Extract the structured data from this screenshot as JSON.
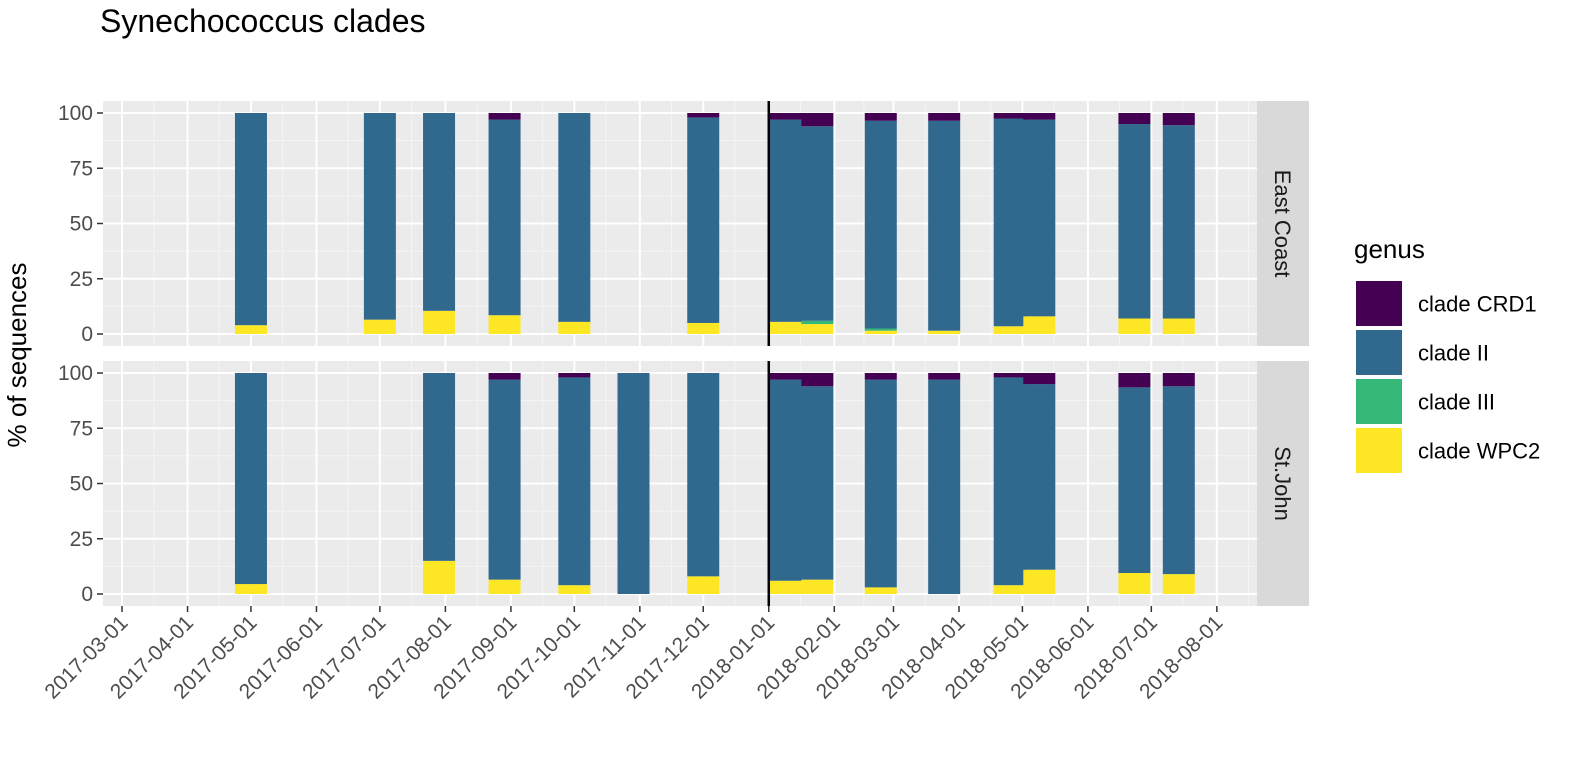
{
  "chart_data": {
    "type": "bar",
    "stacked": true,
    "title": "Synechococcus clades",
    "xlabel": "",
    "ylabel": "% of sequences",
    "ylim": [
      0,
      100
    ],
    "yticks": [
      0,
      25,
      50,
      75,
      100
    ],
    "xlim": [
      "2017-02-20",
      "2018-08-20"
    ],
    "xticks": [
      "2017-03-01",
      "2017-04-01",
      "2017-05-01",
      "2017-06-01",
      "2017-07-01",
      "2017-08-01",
      "2017-09-01",
      "2017-10-01",
      "2017-11-01",
      "2017-12-01",
      "2018-01-01",
      "2018-02-01",
      "2018-03-01",
      "2018-04-01",
      "2018-05-01",
      "2018-06-01",
      "2018-07-01",
      "2018-08-01"
    ],
    "reference_line": "2018-01-01",
    "grid": true,
    "legend": {
      "title": "genus",
      "position": "right",
      "entries": [
        {
          "name": "clade CRD1",
          "color": "#440154"
        },
        {
          "name": "clade II",
          "color": "#31688E"
        },
        {
          "name": "clade III",
          "color": "#35B779"
        },
        {
          "name": "clade WPC2",
          "color": "#FDE725"
        }
      ]
    },
    "stack_order": [
      "clade WPC2",
      "clade III",
      "clade II",
      "clade CRD1"
    ],
    "panels": [
      {
        "name": "East Coast",
        "bars": [
          {
            "date": "2017-05-01",
            "clade WPC2": 4,
            "clade III": 0,
            "clade II": 96,
            "clade CRD1": 0
          },
          {
            "date": "2017-07-01",
            "clade WPC2": 6.5,
            "clade III": 0,
            "clade II": 93.5,
            "clade CRD1": 0
          },
          {
            "date": "2017-07-29",
            "clade WPC2": 10.5,
            "clade III": 0,
            "clade II": 89.5,
            "clade CRD1": 0
          },
          {
            "date": "2017-08-29",
            "clade WPC2": 8.5,
            "clade III": 0,
            "clade II": 88.5,
            "clade CRD1": 3
          },
          {
            "date": "2017-10-01",
            "clade WPC2": 5.5,
            "clade III": 0,
            "clade II": 94.5,
            "clade CRD1": 0
          },
          {
            "date": "2017-12-01",
            "clade WPC2": 5,
            "clade III": 0,
            "clade II": 93,
            "clade CRD1": 2
          },
          {
            "date": "2018-01-09",
            "clade WPC2": 5.5,
            "clade III": 0,
            "clade II": 91.5,
            "clade CRD1": 3
          },
          {
            "date": "2018-01-24",
            "clade WPC2": 4.5,
            "clade III": 1.5,
            "clade II": 88,
            "clade CRD1": 6
          },
          {
            "date": "2018-02-23",
            "clade WPC2": 1.5,
            "clade III": 1,
            "clade II": 94,
            "clade CRD1": 3.5
          },
          {
            "date": "2018-03-25",
            "clade WPC2": 1.5,
            "clade III": 0,
            "clade II": 95,
            "clade CRD1": 3.5
          },
          {
            "date": "2018-04-25",
            "clade WPC2": 3.5,
            "clade III": 0,
            "clade II": 94,
            "clade CRD1": 2.5
          },
          {
            "date": "2018-05-09",
            "clade WPC2": 8,
            "clade III": 0,
            "clade II": 89,
            "clade CRD1": 3
          },
          {
            "date": "2018-06-23",
            "clade WPC2": 7,
            "clade III": 0,
            "clade II": 88,
            "clade CRD1": 5
          },
          {
            "date": "2018-07-14",
            "clade WPC2": 7,
            "clade III": 0,
            "clade II": 87.5,
            "clade CRD1": 5.5
          }
        ]
      },
      {
        "name": "St.John",
        "bars": [
          {
            "date": "2017-05-01",
            "clade WPC2": 4.5,
            "clade III": 0,
            "clade II": 95.5,
            "clade CRD1": 0
          },
          {
            "date": "2017-07-29",
            "clade WPC2": 15,
            "clade III": 0,
            "clade II": 85,
            "clade CRD1": 0
          },
          {
            "date": "2017-08-29",
            "clade WPC2": 6.5,
            "clade III": 0,
            "clade II": 90.5,
            "clade CRD1": 3
          },
          {
            "date": "2017-10-01",
            "clade WPC2": 4,
            "clade III": 0,
            "clade II": 94,
            "clade CRD1": 2
          },
          {
            "date": "2017-10-29",
            "clade WPC2": 0,
            "clade III": 0,
            "clade II": 100,
            "clade CRD1": 0
          },
          {
            "date": "2017-12-01",
            "clade WPC2": 8,
            "clade III": 0,
            "clade II": 92,
            "clade CRD1": 0
          },
          {
            "date": "2018-01-09",
            "clade WPC2": 6,
            "clade III": 0,
            "clade II": 91,
            "clade CRD1": 3
          },
          {
            "date": "2018-01-24",
            "clade WPC2": 6.5,
            "clade III": 0,
            "clade II": 87.5,
            "clade CRD1": 6
          },
          {
            "date": "2018-02-23",
            "clade WPC2": 3,
            "clade III": 0,
            "clade II": 94,
            "clade CRD1": 3
          },
          {
            "date": "2018-03-25",
            "clade WPC2": 0,
            "clade III": 0,
            "clade II": 97,
            "clade CRD1": 3
          },
          {
            "date": "2018-04-25",
            "clade WPC2": 4,
            "clade III": 0,
            "clade II": 94,
            "clade CRD1": 2
          },
          {
            "date": "2018-05-09",
            "clade WPC2": 11,
            "clade III": 0,
            "clade II": 84,
            "clade CRD1": 5
          },
          {
            "date": "2018-06-23",
            "clade WPC2": 9.5,
            "clade III": 0,
            "clade II": 84,
            "clade CRD1": 6.5
          },
          {
            "date": "2018-07-14",
            "clade WPC2": 9,
            "clade III": 0,
            "clade II": 85,
            "clade CRD1": 6
          }
        ]
      }
    ]
  }
}
